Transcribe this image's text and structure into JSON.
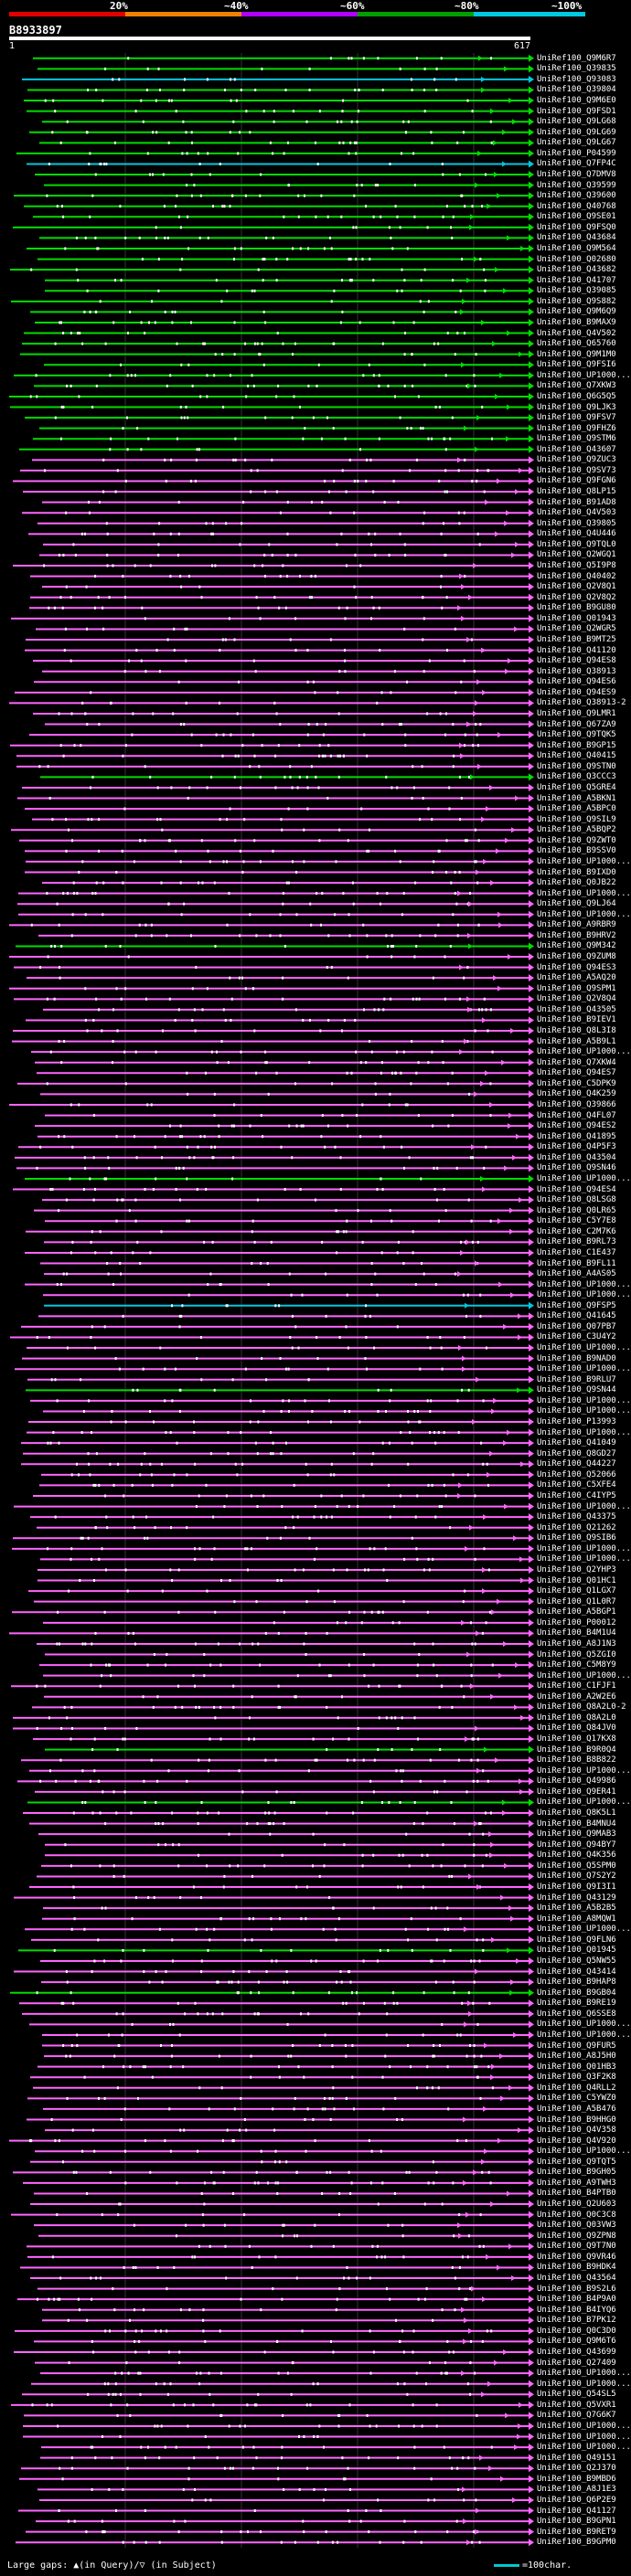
{
  "legend": {
    "labels": [
      "20%",
      "~40%",
      "~60%",
      "~80%",
      "~100%"
    ],
    "colors": [
      "#e00000",
      "#f08000",
      "#b000ff",
      "#00a000",
      "#00c8e0"
    ]
  },
  "query": {
    "id": "B8933897",
    "start": "1",
    "end": "617"
  },
  "colors": {
    "magenta": "#ff66ff",
    "green": "#00dd00",
    "cyan": "#00c8e0",
    "orange": "#ff9900",
    "red": "#ff2020",
    "white": "#ffffff",
    "purple": "#cc55ff"
  },
  "hits": [
    {
      "label": "UniRef100_Q9M6R7",
      "color": "green"
    },
    {
      "label": "UniRef100_Q39835",
      "color": "green"
    },
    {
      "label": "UniRef100_Q93083",
      "color": "cyan"
    },
    {
      "label": "UniRef100_Q39804",
      "color": "green"
    },
    {
      "label": "UniRef100_Q9M6E0",
      "color": "green"
    },
    {
      "label": "UniRef100_Q9FSD1",
      "color": "green"
    },
    {
      "label": "UniRef100_Q9LG68",
      "color": "green"
    },
    {
      "label": "UniRef100_Q9LG69",
      "color": "green"
    },
    {
      "label": "UniRef100_Q9LG67",
      "color": "green"
    },
    {
      "label": "UniRef100_P04599",
      "color": "green"
    },
    {
      "label": "UniRef100_Q7FP4C",
      "color": "cyan"
    },
    {
      "label": "UniRef100_Q7DMV8",
      "color": "green"
    },
    {
      "label": "UniRef100_Q39599",
      "color": "green"
    },
    {
      "label": "UniRef100_Q39600",
      "color": "green"
    },
    {
      "label": "UniRef100_Q40768",
      "color": "green"
    },
    {
      "label": "UniRef100_Q9SE01",
      "color": "green"
    },
    {
      "label": "UniRef100_Q9FSQ0",
      "color": "green"
    },
    {
      "label": "UniRef100_Q43684",
      "color": "green"
    },
    {
      "label": "UniRef100_Q9M564",
      "color": "green"
    },
    {
      "label": "UniRef100_Q02680",
      "color": "green"
    },
    {
      "label": "UniRef100_Q43682",
      "color": "green"
    },
    {
      "label": "UniRef100_Q41707",
      "color": "green"
    },
    {
      "label": "UniRef100_Q39085",
      "color": "green"
    },
    {
      "label": "UniRef100_Q9S882",
      "color": "green"
    },
    {
      "label": "UniRef100_Q9M6Q9",
      "color": "green"
    },
    {
      "label": "UniRef100_B9MAX9",
      "color": "green"
    },
    {
      "label": "UniRef100_Q4V502",
      "color": "green"
    },
    {
      "label": "UniRef100_Q65760",
      "color": "green"
    },
    {
      "label": "UniRef100_Q9M1M0",
      "color": "green"
    },
    {
      "label": "UniRef100_Q9FSI6",
      "color": "green"
    },
    {
      "label": "UniRef100_UP1000...",
      "color": "green"
    },
    {
      "label": "UniRef100_Q7XKW3",
      "color": "green"
    },
    {
      "label": "UniRef100_Q6G5Q5",
      "color": "green"
    },
    {
      "label": "UniRef100_Q9LJK3",
      "color": "green"
    },
    {
      "label": "UniRef100_Q9FSV7",
      "color": "green"
    },
    {
      "label": "UniRef100_Q9FHZ6",
      "color": "green"
    },
    {
      "label": "UniRef100_Q9STM6",
      "color": "green"
    },
    {
      "label": "UniRef100_Q43607",
      "color": "green"
    },
    {
      "label": "UniRef100_Q9ZUC3",
      "color": "magenta"
    },
    {
      "label": "UniRef100_Q9SV73",
      "color": "magenta"
    },
    {
      "label": "UniRef100_Q9FGN6",
      "color": "magenta"
    },
    {
      "label": "UniRef100_Q8LP15",
      "color": "magenta"
    },
    {
      "label": "UniRef100_B91AD8",
      "color": "magenta"
    },
    {
      "label": "UniRef100_Q4V503",
      "color": "magenta"
    },
    {
      "label": "UniRef100_Q39805",
      "color": "magenta"
    },
    {
      "label": "UniRef100_Q4U446",
      "color": "magenta"
    },
    {
      "label": "UniRef100_Q9TQL0",
      "color": "magenta"
    },
    {
      "label": "UniRef100_Q2WGQ1",
      "color": "magenta"
    },
    {
      "label": "UniRef100_Q5I9P8",
      "color": "magenta"
    },
    {
      "label": "UniRef100_Q40402",
      "color": "magenta"
    },
    {
      "label": "UniRef100_Q2V8Q1",
      "color": "magenta"
    },
    {
      "label": "UniRef100_Q2V8Q2",
      "color": "magenta"
    },
    {
      "label": "UniRef100_B9GU80",
      "color": "magenta"
    },
    {
      "label": "UniRef100_Q01943",
      "color": "magenta"
    },
    {
      "label": "UniRef100_Q2WGR5",
      "color": "magenta"
    },
    {
      "label": "UniRef100_B9MT25",
      "color": "magenta"
    },
    {
      "label": "UniRef100_Q41120",
      "color": "magenta"
    },
    {
      "label": "UniRef100_Q94ES8",
      "color": "magenta"
    },
    {
      "label": "UniRef100_Q38913",
      "color": "magenta"
    },
    {
      "label": "UniRef100_Q94ES6",
      "color": "magenta"
    },
    {
      "label": "UniRef100_Q94ES9",
      "color": "magenta"
    },
    {
      "label": "UniRef100_Q38913-2",
      "color": "magenta"
    },
    {
      "label": "UniRef100_Q9LMR1",
      "color": "magenta"
    },
    {
      "label": "UniRef100_Q67ZA9",
      "color": "magenta"
    },
    {
      "label": "UniRef100_Q9TQK5",
      "color": "magenta"
    },
    {
      "label": "UniRef100_B9GP15",
      "color": "magenta"
    },
    {
      "label": "UniRef100_Q40415",
      "color": "magenta"
    },
    {
      "label": "UniRef100_Q9STN0",
      "color": "magenta"
    },
    {
      "label": "UniRef100_Q3CCC3",
      "color": "green"
    },
    {
      "label": "UniRef100_Q5GRE4",
      "color": "magenta"
    },
    {
      "label": "UniRef100_A5BKN1",
      "color": "magenta"
    },
    {
      "label": "UniRef100_A5BPC0",
      "color": "magenta"
    },
    {
      "label": "UniRef100_Q9SIL9",
      "color": "magenta"
    },
    {
      "label": "UniRef100_A5BQP2",
      "color": "magenta"
    },
    {
      "label": "UniRef100_Q9ZWT0",
      "color": "magenta"
    },
    {
      "label": "UniRef100_B9SSV0",
      "color": "magenta"
    },
    {
      "label": "UniRef100_UP1000...",
      "color": "magenta"
    },
    {
      "label": "UniRef100_B9IXD0",
      "color": "magenta"
    },
    {
      "label": "UniRef100_Q0JB22",
      "color": "magenta"
    },
    {
      "label": "UniRef100_UP1000...",
      "color": "magenta"
    },
    {
      "label": "UniRef100_Q9LJ64",
      "color": "magenta"
    },
    {
      "label": "UniRef100_UP1000...",
      "color": "magenta"
    },
    {
      "label": "UniRef100_A9RBR9",
      "color": "magenta"
    },
    {
      "label": "UniRef100_B9HRV2",
      "color": "magenta"
    },
    {
      "label": "UniRef100_Q9M342",
      "color": "green"
    },
    {
      "label": "UniRef100_Q9ZUM8",
      "color": "magenta"
    },
    {
      "label": "UniRef100_Q94ES3",
      "color": "magenta"
    },
    {
      "label": "UniRef100_A5AQ20",
      "color": "magenta"
    },
    {
      "label": "UniRef100_Q9SPM1",
      "color": "magenta"
    },
    {
      "label": "UniRef100_Q2V8Q4",
      "color": "magenta"
    },
    {
      "label": "UniRef100_Q43505",
      "color": "magenta"
    },
    {
      "label": "UniRef100_B9IEV1",
      "color": "magenta"
    },
    {
      "label": "UniRef100_Q8L3I8",
      "color": "magenta"
    },
    {
      "label": "UniRef100_A5B9L1",
      "color": "magenta"
    },
    {
      "label": "UniRef100_UP1000...",
      "color": "magenta"
    },
    {
      "label": "UniRef100_Q7XKW4",
      "color": "magenta"
    },
    {
      "label": "UniRef100_Q94ES7",
      "color": "magenta"
    },
    {
      "label": "UniRef100_C5DPK9",
      "color": "magenta"
    },
    {
      "label": "UniRef100_Q4K259",
      "color": "magenta"
    },
    {
      "label": "UniRef100_Q39866",
      "color": "magenta"
    },
    {
      "label": "UniRef100_Q4FL07",
      "color": "magenta"
    },
    {
      "label": "UniRef100_Q94ES2",
      "color": "magenta"
    },
    {
      "label": "UniRef100_Q41895",
      "color": "magenta"
    },
    {
      "label": "UniRef100_Q4P5F3",
      "color": "magenta"
    },
    {
      "label": "UniRef100_Q43504",
      "color": "magenta"
    },
    {
      "label": "UniRef100_Q9SN46",
      "color": "magenta"
    },
    {
      "label": "UniRef100_UP1000...",
      "color": "green"
    },
    {
      "label": "UniRef100_Q94ES4",
      "color": "magenta"
    },
    {
      "label": "UniRef100_Q8LSG8",
      "color": "magenta"
    },
    {
      "label": "UniRef100_Q0LR65",
      "color": "magenta"
    },
    {
      "label": "UniRef100_C5Y7E8",
      "color": "magenta"
    },
    {
      "label": "UniRef100_C2M7K6",
      "color": "magenta"
    },
    {
      "label": "UniRef100_B9RL73",
      "color": "magenta"
    },
    {
      "label": "UniRef100_C1E437",
      "color": "magenta"
    },
    {
      "label": "UniRef100_B9FL11",
      "color": "magenta"
    },
    {
      "label": "UniRef100_A4AS05",
      "color": "magenta"
    },
    {
      "label": "UniRef100_UP1000...",
      "color": "magenta"
    },
    {
      "label": "UniRef100_UP1000...",
      "color": "magenta"
    },
    {
      "label": "UniRef100_Q9FSP5",
      "color": "cyan"
    },
    {
      "label": "UniRef100_Q41645",
      "color": "magenta"
    },
    {
      "label": "UniRef100_Q07PB7",
      "color": "magenta"
    },
    {
      "label": "UniRef100_C3U4Y2",
      "color": "magenta"
    },
    {
      "label": "UniRef100_UP1000...",
      "color": "magenta"
    },
    {
      "label": "UniRef100_B9NAD0",
      "color": "magenta"
    },
    {
      "label": "UniRef100_UP1000...",
      "color": "magenta"
    },
    {
      "label": "UniRef100_B9RLU7",
      "color": "magenta"
    },
    {
      "label": "UniRef100_Q9SN44",
      "color": "green"
    },
    {
      "label": "UniRef100_UP1000...",
      "color": "magenta"
    },
    {
      "label": "UniRef100_UP1000...",
      "color": "magenta"
    },
    {
      "label": "UniRef100_P13993",
      "color": "magenta"
    },
    {
      "label": "UniRef100_UP1000...",
      "color": "magenta"
    },
    {
      "label": "UniRef100_Q41049",
      "color": "magenta"
    },
    {
      "label": "UniRef100_Q8GD27",
      "color": "magenta"
    },
    {
      "label": "UniRef100_Q44227",
      "color": "magenta"
    },
    {
      "label": "UniRef100_Q52066",
      "color": "magenta"
    },
    {
      "label": "UniRef100_C5XFE4",
      "color": "magenta"
    },
    {
      "label": "UniRef100_C4IYP5",
      "color": "magenta"
    },
    {
      "label": "UniRef100_UP1000...",
      "color": "magenta"
    },
    {
      "label": "UniRef100_Q43375",
      "color": "magenta"
    },
    {
      "label": "UniRef100_Q21262",
      "color": "magenta"
    },
    {
      "label": "UniRef100_Q9SIB6",
      "color": "magenta"
    },
    {
      "label": "UniRef100_UP1000...",
      "color": "magenta"
    },
    {
      "label": "UniRef100_UP1000...",
      "color": "magenta"
    },
    {
      "label": "UniRef100_Q2YHP3",
      "color": "magenta"
    },
    {
      "label": "UniRef100_Q01HC1",
      "color": "magenta"
    },
    {
      "label": "UniRef100_Q1LGX7",
      "color": "magenta"
    },
    {
      "label": "UniRef100_Q1L0R7",
      "color": "magenta"
    },
    {
      "label": "UniRef100_A5BGP1",
      "color": "magenta"
    },
    {
      "label": "UniRef100_P00012",
      "color": "magenta"
    },
    {
      "label": "UniRef100_B4M1U4",
      "color": "magenta"
    },
    {
      "label": "UniRef100_A8J1N3",
      "color": "magenta"
    },
    {
      "label": "UniRef100_Q5ZGI0",
      "color": "magenta"
    },
    {
      "label": "UniRef100_C5M8Y9",
      "color": "magenta"
    },
    {
      "label": "UniRef100_UP1000...",
      "color": "magenta"
    },
    {
      "label": "UniRef100_C1FJF1",
      "color": "magenta"
    },
    {
      "label": "UniRef100_A2W2E6",
      "color": "magenta"
    },
    {
      "label": "UniRef100_Q8A2L0-2",
      "color": "magenta"
    },
    {
      "label": "UniRef100_Q8A2L0",
      "color": "magenta"
    },
    {
      "label": "UniRef100_Q84JV0",
      "color": "magenta"
    },
    {
      "label": "UniRef100_Q17KX8",
      "color": "magenta"
    },
    {
      "label": "UniRef100_B9R0Q4",
      "color": "green"
    },
    {
      "label": "UniRef100_B8B822",
      "color": "magenta"
    },
    {
      "label": "UniRef100_UP1000...",
      "color": "magenta"
    },
    {
      "label": "UniRef100_Q49986",
      "color": "magenta"
    },
    {
      "label": "UniRef100_Q9ER41",
      "color": "magenta"
    },
    {
      "label": "UniRef100_UP1000...",
      "color": "green"
    },
    {
      "label": "UniRef100_Q8K5L1",
      "color": "magenta"
    },
    {
      "label": "UniRef100_B4MNU4",
      "color": "magenta"
    },
    {
      "label": "UniRef100_Q9MAB3",
      "color": "magenta"
    },
    {
      "label": "UniRef100_Q94BY7",
      "color": "magenta"
    },
    {
      "label": "UniRef100_Q4K356",
      "color": "magenta"
    },
    {
      "label": "UniRef100_Q5SPM0",
      "color": "magenta"
    },
    {
      "label": "UniRef100_Q7S2Y2",
      "color": "magenta"
    },
    {
      "label": "UniRef100_Q9I3I1",
      "color": "magenta"
    },
    {
      "label": "UniRef100_Q43129",
      "color": "magenta"
    },
    {
      "label": "UniRef100_A5B2B5",
      "color": "magenta"
    },
    {
      "label": "UniRef100_A8MQW1",
      "color": "magenta"
    },
    {
      "label": "UniRef100_UP1000...",
      "color": "magenta"
    },
    {
      "label": "UniRef100_Q9FLN6",
      "color": "magenta"
    },
    {
      "label": "UniRef100_Q01945",
      "color": "green"
    },
    {
      "label": "UniRef100_Q5NW55",
      "color": "magenta"
    },
    {
      "label": "UniRef100_Q43414",
      "color": "magenta"
    },
    {
      "label": "UniRef100_B9HAP8",
      "color": "magenta"
    },
    {
      "label": "UniRef100_B9GB04",
      "color": "green"
    },
    {
      "label": "UniRef100_B9RE19",
      "color": "magenta"
    },
    {
      "label": "UniRef100_Q6SSE8",
      "color": "magenta"
    },
    {
      "label": "UniRef100_UP1000...",
      "color": "magenta"
    },
    {
      "label": "UniRef100_UP1000...",
      "color": "magenta"
    },
    {
      "label": "UniRef100_Q9FUR5",
      "color": "magenta"
    },
    {
      "label": "UniRef100_A8J5H0",
      "color": "magenta"
    },
    {
      "label": "UniRef100_Q01HB3",
      "color": "magenta"
    },
    {
      "label": "UniRef100_Q3F2K8",
      "color": "magenta"
    },
    {
      "label": "UniRef100_Q4RLL2",
      "color": "magenta"
    },
    {
      "label": "UniRef100_C5YWZ0",
      "color": "magenta"
    },
    {
      "label": "UniRef100_A5B476",
      "color": "magenta"
    },
    {
      "label": "UniRef100_B9HHG0",
      "color": "magenta"
    },
    {
      "label": "UniRef100_Q4V358",
      "color": "magenta"
    },
    {
      "label": "UniRef100_Q4V920",
      "color": "magenta"
    },
    {
      "label": "UniRef100_UP1000...",
      "color": "magenta"
    },
    {
      "label": "UniRef100_Q9TQT5",
      "color": "magenta"
    },
    {
      "label": "UniRef100_B9GH05",
      "color": "magenta"
    },
    {
      "label": "UniRef100_A9TWH3",
      "color": "magenta"
    },
    {
      "label": "UniRef100_B4PTB0",
      "color": "magenta"
    },
    {
      "label": "UniRef100_Q2U603",
      "color": "magenta"
    },
    {
      "label": "UniRef100_Q0C3C8",
      "color": "magenta"
    },
    {
      "label": "UniRef100_Q03VW3",
      "color": "magenta"
    },
    {
      "label": "UniRef100_Q9ZPN8",
      "color": "magenta"
    },
    {
      "label": "UniRef100_Q9T7N0",
      "color": "magenta"
    },
    {
      "label": "UniRef100_Q9VR46",
      "color": "magenta"
    },
    {
      "label": "UniRef100_B9HDK4",
      "color": "magenta"
    },
    {
      "label": "UniRef100_Q43564",
      "color": "magenta"
    },
    {
      "label": "UniRef100_B9S2L6",
      "color": "magenta"
    },
    {
      "label": "UniRef100_B4P9A0",
      "color": "magenta"
    },
    {
      "label": "UniRef100_B4IYQ6",
      "color": "magenta"
    },
    {
      "label": "UniRef100_B7PK12",
      "color": "magenta"
    },
    {
      "label": "UniRef100_Q0C3D0",
      "color": "magenta"
    },
    {
      "label": "UniRef100_Q9M6T6",
      "color": "magenta"
    },
    {
      "label": "UniRef100_Q43699",
      "color": "magenta"
    },
    {
      "label": "UniRef100_Q27409",
      "color": "magenta"
    },
    {
      "label": "UniRef100_UP1000...",
      "color": "magenta"
    },
    {
      "label": "UniRef100_UP1000...",
      "color": "magenta"
    },
    {
      "label": "UniRef100_Q54SL5",
      "color": "magenta"
    },
    {
      "label": "UniRef100_Q5VXR1",
      "color": "magenta"
    },
    {
      "label": "UniRef100_Q7G6K7",
      "color": "magenta"
    },
    {
      "label": "UniRef100_UP1000...",
      "color": "magenta"
    },
    {
      "label": "UniRef100_UP1000...",
      "color": "magenta"
    },
    {
      "label": "UniRef100_UP1000...",
      "color": "magenta"
    },
    {
      "label": "UniRef100_Q49151",
      "color": "magenta"
    },
    {
      "label": "UniRef100_Q2J370",
      "color": "magenta"
    },
    {
      "label": "UniRef100_B9MBD6",
      "color": "magenta"
    },
    {
      "label": "UniRef100_A8J1E3",
      "color": "magenta"
    },
    {
      "label": "UniRef100_Q6P2E9",
      "color": "magenta"
    },
    {
      "label": "UniRef100_Q41127",
      "color": "magenta"
    },
    {
      "label": "UniRef100_B9GPN1",
      "color": "magenta"
    },
    {
      "label": "UniRef100_B9RET9",
      "color": "magenta"
    },
    {
      "label": "UniRef100_B9GPM0",
      "color": "magenta"
    }
  ],
  "footer": {
    "gaps_text": "Large gaps: ▲(in Query)/▽ (in Subject)",
    "scale_text": "=100char."
  }
}
